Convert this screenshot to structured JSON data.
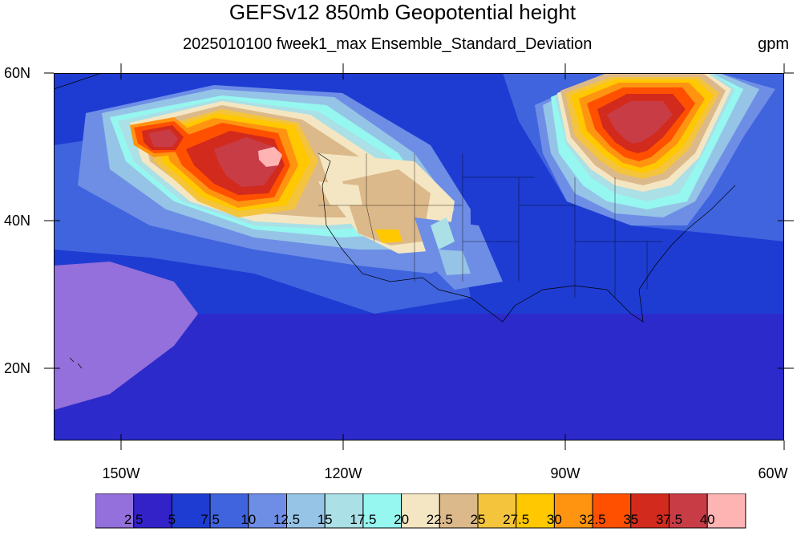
{
  "title": "GEFSv12 850mb Geopotential height",
  "subtitle": "2025010100 fweek1_max Ensemble_Standard_Deviation",
  "units": "gpm",
  "axes": {
    "lat_labels": [
      "60N",
      "40N",
      "20N"
    ],
    "lon_labels": [
      "150W",
      "120W",
      "90W",
      "60W"
    ]
  },
  "colorbar": {
    "colors": [
      "#9370db",
      "#3222c8",
      "#1e3cd2",
      "#4064de",
      "#6e8ee6",
      "#96c4e6",
      "#aae0e6",
      "#96f6f0",
      "#f4e6c2",
      "#dcb98a",
      "#f4c43c",
      "#ffc800",
      "#ff9410",
      "#ff5000",
      "#d22a1c",
      "#c83c46",
      "#ffb4b4"
    ],
    "labels": [
      "2.5",
      "5",
      "7.5",
      "10",
      "12.5",
      "15",
      "17.5",
      "20",
      "22.5",
      "25",
      "27.5",
      "30",
      "32.5",
      "35",
      "37.5",
      "40"
    ]
  }
}
